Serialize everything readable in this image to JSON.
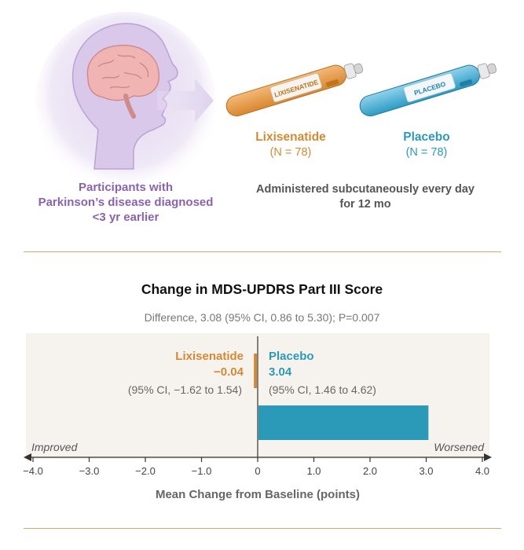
{
  "participants": {
    "label_lines": [
      "Participants with",
      "Parkinson’s disease diagnosed",
      "<3 yr earlier"
    ]
  },
  "pens": {
    "lixisenatide": {
      "pen_label": "LIXISENATIDE",
      "name": "Lixisenatide",
      "n": "(N = 78)"
    },
    "placebo": {
      "pen_label": "PLACEBO",
      "name": "Placebo",
      "n": "(N = 78)"
    }
  },
  "administration": {
    "lines": [
      "Administered subcutaneously every day",
      "for 12 mo"
    ]
  },
  "colors": {
    "lixisenatide": "#d18a33",
    "placebo": "#2b9ab8",
    "participants": "#8a62ad",
    "rule": "#d4a971"
  },
  "chart_data": {
    "type": "bar",
    "orientation": "horizontal",
    "title": "Change in MDS-UPDRS Part III Score",
    "subtitle": "Difference, 3.08 (95% CI, 0.86 to 5.30); P=0.007",
    "xlabel": "Mean Change from Baseline (points)",
    "xlim": [
      -4.0,
      4.0
    ],
    "xticks": [
      "−4.0",
      "−3.0",
      "−2.0",
      "−1.0",
      "0",
      "1.0",
      "2.0",
      "3.0",
      "4.0"
    ],
    "xtick_values": [
      -4,
      -3,
      -2,
      -1,
      0,
      1,
      2,
      3,
      4
    ],
    "left_annotation": "Improved",
    "right_annotation": "Worsened",
    "series": [
      {
        "name": "Lixisenatide",
        "value": -0.04,
        "value_label": "−0.04",
        "ci": "(95% CI, −1.62 to 1.54)"
      },
      {
        "name": "Placebo",
        "value": 3.04,
        "value_label": "3.04",
        "ci": "(95% CI, 1.46 to 4.62)"
      }
    ]
  }
}
